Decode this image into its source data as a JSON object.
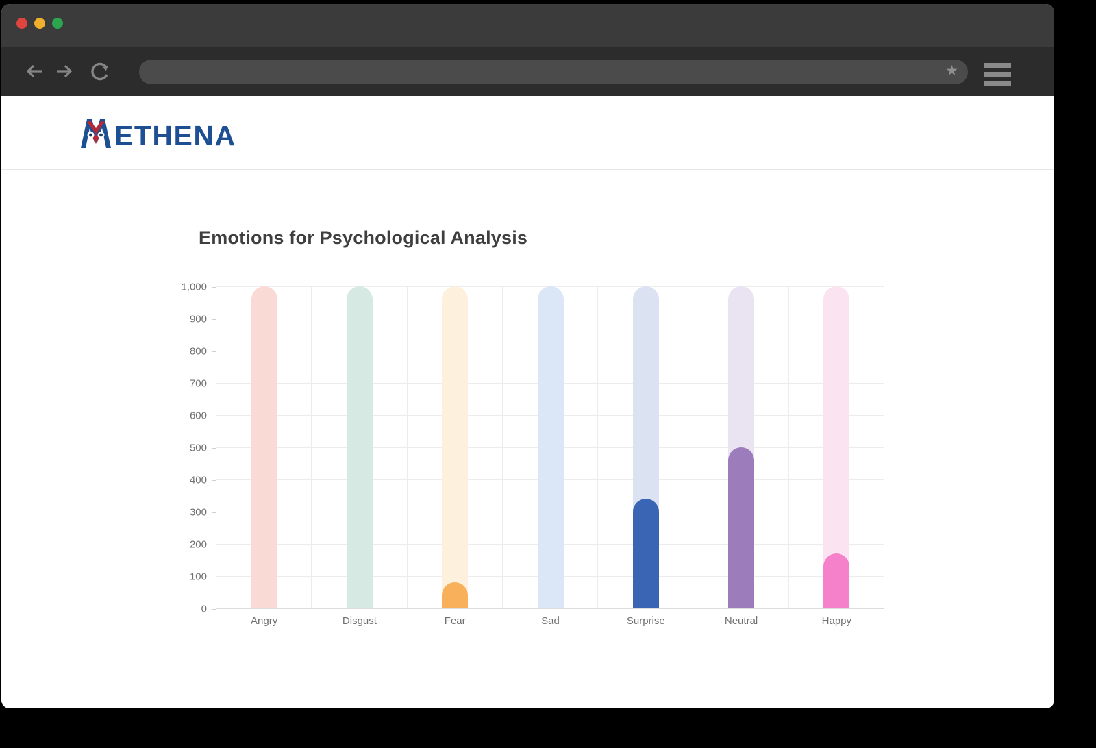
{
  "browser": {
    "window_controls": [
      "close",
      "minimize",
      "maximize"
    ],
    "traffic_colors": {
      "close": "#e0443e",
      "minimize": "#f1b02c",
      "maximize": "#2da44e"
    },
    "address_bar": {
      "value": "",
      "placeholder": ""
    },
    "icons": {
      "back": "back-arrow",
      "forward": "forward-arrow",
      "reload": "reload-circular-arrow",
      "bookmark": "star",
      "menu": "hamburger"
    }
  },
  "brand": {
    "name": "METHENA",
    "wordmark_prefix": "M",
    "wordmark_suffix": "ETHENA",
    "blue": "#1d4f92",
    "red": "#b02a37"
  },
  "chart_data": {
    "type": "bar",
    "title": "Emotions for Psychological Analysis",
    "categories": [
      "Angry",
      "Disgust",
      "Fear",
      "Sad",
      "Surprise",
      "Neutral",
      "Happy"
    ],
    "series": [
      {
        "name": "Emotions",
        "values": [
          0,
          0,
          80,
          0,
          340,
          500,
          170
        ]
      }
    ],
    "track_value": 1000,
    "ylim": [
      0,
      1000
    ],
    "ytick_step": 100,
    "ytick_labels": [
      "0",
      "100",
      "200",
      "300",
      "400",
      "500",
      "600",
      "700",
      "800",
      "900",
      "1,000"
    ],
    "grid": true,
    "legend_position": "none",
    "bar_colors": [
      null,
      null,
      "#f9b05a",
      null,
      "#3a65b5",
      "#9c7cba",
      "#f481ca"
    ],
    "track_colors": [
      "#fadad5",
      "#d7e9e3",
      "#fdf0dc",
      "#dbe7f6",
      "#dbe2f2",
      "#eae4f2",
      "#fce3f1"
    ]
  }
}
